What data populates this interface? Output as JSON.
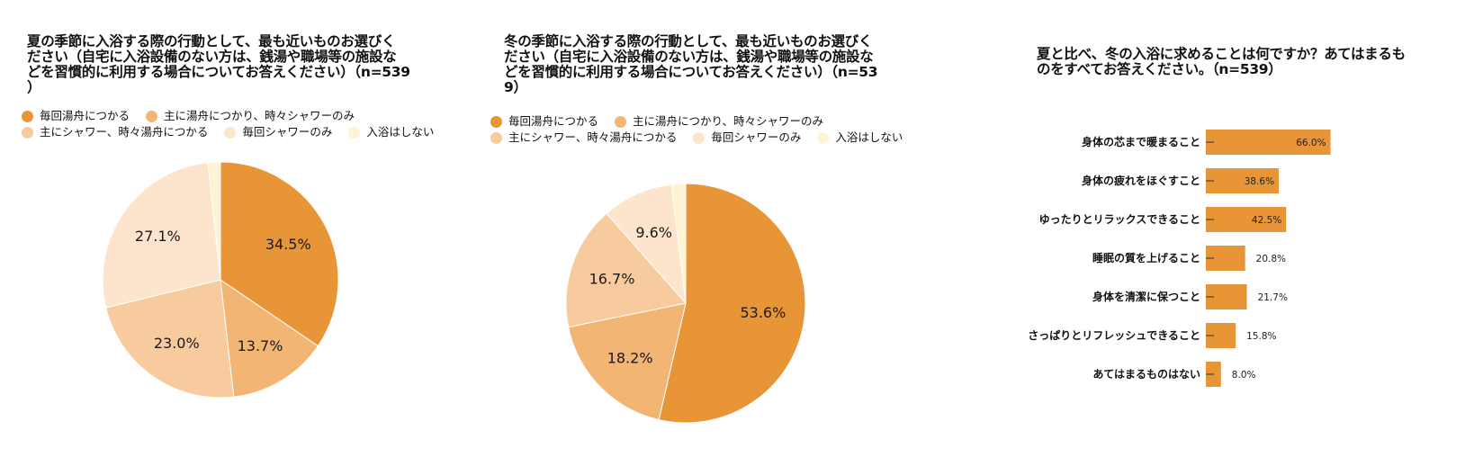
{
  "charts": [
    {
      "id": "summer",
      "title": "夏の季節に入浴する際の行動として、最も近いものお選びく\nださい（自宅に入浴設備のない方は、銭湯や職場等の施設な\nどを習慣的に利用する場合についてお答えください）（n=539\n）",
      "chart_data": {
        "type": "pie",
        "categories": [
          "毎回湯舟につかる",
          "主に湯舟につかり、時々シャワーのみ",
          "主にシャワー、時々湯舟につかる",
          "毎回シャワーのみ",
          "入浴はしない"
        ],
        "values": [
          34.5,
          13.7,
          23.0,
          27.1,
          1.7
        ],
        "labels": [
          "34.5%",
          "13.7%",
          "23.0%",
          "27.1%",
          ""
        ],
        "colors": [
          "#E89538",
          "#F3B574",
          "#F8CB9E",
          "#FCE4CD",
          "#FEF3D2"
        ],
        "legend_position": "top"
      }
    },
    {
      "id": "winter",
      "title": "冬の季節に入浴する際の行動として、最も近いものお選びく\nださい（自宅に入浴設備のない方は、銭湯や職場等の施設な\nどを習慣的に利用する場合についてお答えください）（n=53\n9）",
      "chart_data": {
        "type": "pie",
        "categories": [
          "毎回湯舟につかる",
          "主に湯舟につかり、時々シャワーのみ",
          "主にシャワー、時々湯舟につかる",
          "毎回シャワーのみ",
          "入浴はしない"
        ],
        "values": [
          53.6,
          18.2,
          16.7,
          9.6,
          1.9
        ],
        "labels": [
          "53.6%",
          "18.2%",
          "16.7%",
          "9.6%",
          ""
        ],
        "colors": [
          "#E89538",
          "#F3B574",
          "#F8CB9E",
          "#FCE4CD",
          "#FEF3D2"
        ],
        "legend_position": "top"
      }
    },
    {
      "id": "winter-needs",
      "title": "夏と比べ、冬の入浴に求めることは何ですか？あてはまるも\nのをすべてお答えください。（n=539）",
      "chart_data": {
        "type": "bar",
        "orientation": "horizontal",
        "categories": [
          "身体の芯まで暖まること",
          "身体の疲れをほぐすこと",
          "ゆったりとリラックスできること",
          "睡眠の質を上げること",
          "身体を清潔に保つこと",
          "さっぱりとリフレッシュできること",
          "あてはまるものはない"
        ],
        "values": [
          66.0,
          38.6,
          42.5,
          20.8,
          21.7,
          15.8,
          8.0
        ],
        "labels": [
          "66.0%",
          "38.6%",
          "42.5%",
          "20.8%",
          "21.7%",
          "15.8%",
          "8.0%"
        ],
        "bar_color": "#E89538",
        "xlim": [
          0,
          100
        ],
        "grid": false
      }
    }
  ]
}
